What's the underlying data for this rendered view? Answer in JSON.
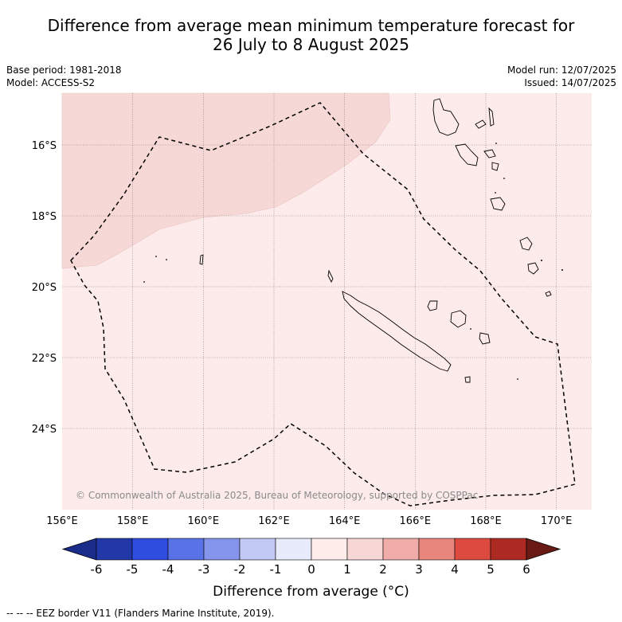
{
  "title_line1": "Difference from average mean minimum temperature forecast for",
  "title_line2": "26 July to 8 August 2025",
  "base_period": "Base period: 1981-2018",
  "model": "Model: ACCESS-S2",
  "model_run": "Model run: 12/07/2025",
  "issued": "Issued: 14/07/2025",
  "copyright": "© Commonwealth of Australia 2025, Bureau of Meteorology, supported by COSPPac",
  "lat_labels": [
    "16°S",
    "18°S",
    "20°S",
    "22°S",
    "24°S"
  ],
  "lon_labels": [
    "156°E",
    "158°E",
    "160°E",
    "162°E",
    "164°E",
    "166°E",
    "168°E",
    "170°E"
  ],
  "colorbar": {
    "ticks": [
      "-6",
      "-5",
      "-4",
      "-3",
      "-2",
      "-1",
      "0",
      "1",
      "2",
      "3",
      "4",
      "5",
      "6"
    ],
    "colors": [
      "#1b2d8a",
      "#2338a8",
      "#2f4ee0",
      "#5a72e8",
      "#8695ec",
      "#c2c9f4",
      "#e8ebfb",
      "#fdecea",
      "#f7d7d5",
      "#efaca8",
      "#e8867e",
      "#dc4a40",
      "#ad2a22",
      "#6a1a14"
    ],
    "label": "Difference from average (°C)"
  },
  "map_fill": {
    "background_anomaly": "0 to 1",
    "background_color": "#fcebea",
    "northwest_anomaly": "1 to 2",
    "northwest_color": "#f6d8d6"
  },
  "footer": "-- -- -- EEZ border V11 (Flanders Marine Institute, 2019)."
}
